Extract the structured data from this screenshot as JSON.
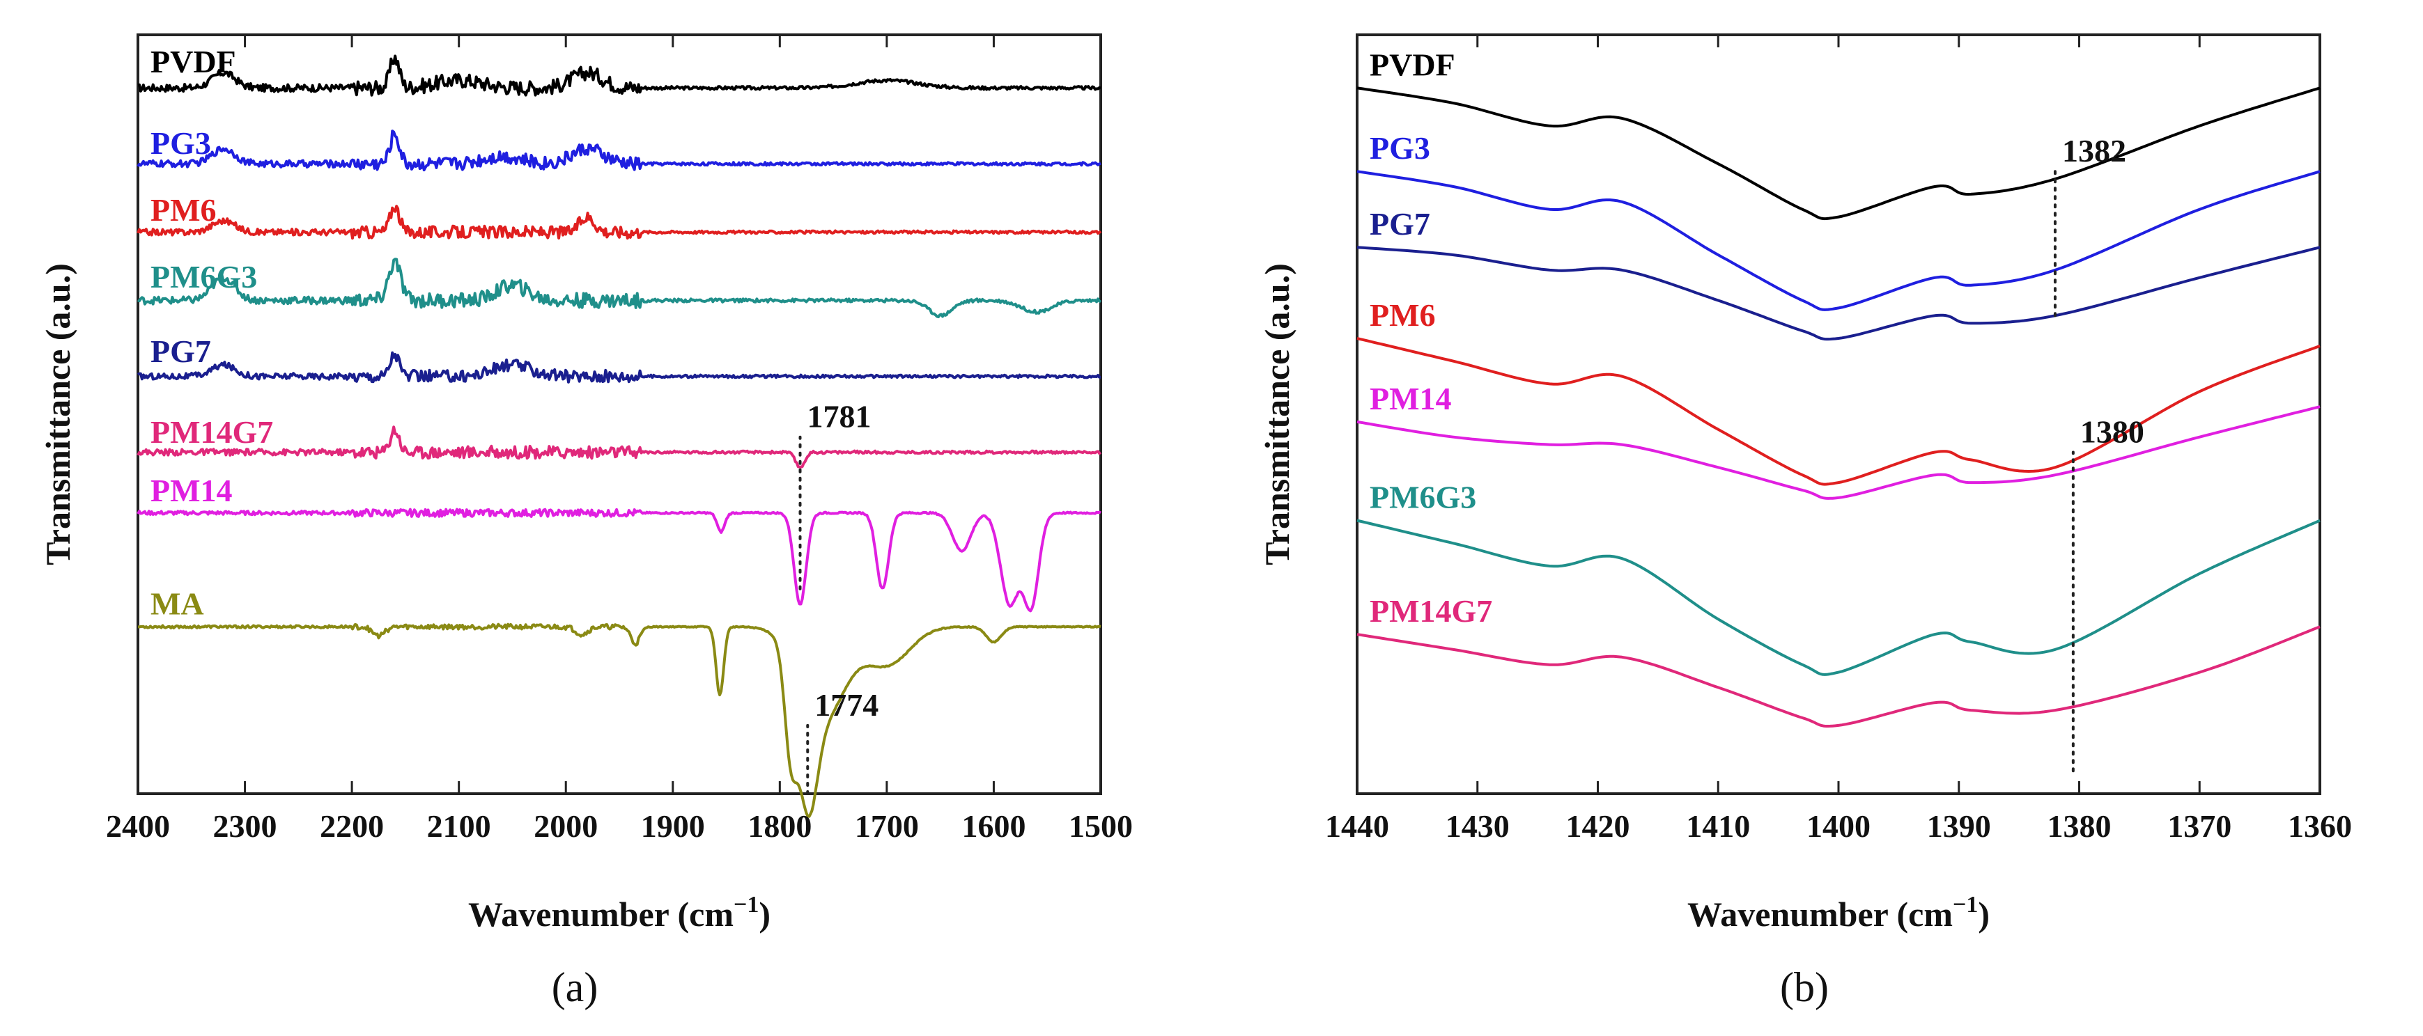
{
  "chart_data": [
    {
      "type": "line",
      "panel": "a",
      "caption": "(a)",
      "xlabel_main": "Wavenumber (cm",
      "xlabel_sup": "−1",
      "xlabel_end": ")",
      "ylabel": "Transmittance (a.u.)",
      "xlim": [
        2400,
        1500
      ],
      "x_reversed": true,
      "xticks": [
        2400,
        2300,
        2200,
        2100,
        2000,
        1900,
        1800,
        1700,
        1600,
        1500
      ],
      "legend": "inline labels at left of each trace",
      "series": [
        {
          "name": "PVDF",
          "color": "#000000",
          "offset": 0.93,
          "bumps": [
            [
              2320,
              0.02,
              15
            ],
            [
              2160,
              0.04,
              6
            ],
            [
              2100,
              0.01,
              30
            ],
            [
              1980,
              0.02,
              20
            ],
            [
              1700,
              0.01,
              40
            ]
          ],
          "noise": 0.012
        },
        {
          "name": "PG3",
          "color": "#1f1fe0",
          "offset": 0.83,
          "bumps": [
            [
              2320,
              0.02,
              15
            ],
            [
              2160,
              0.04,
              6
            ],
            [
              2060,
              0.01,
              25
            ],
            [
              1980,
              0.02,
              20
            ]
          ],
          "noise": 0.011
        },
        {
          "name": "PM6",
          "color": "#e01f1f",
          "offset": 0.74,
          "bumps": [
            [
              2320,
              0.015,
              15
            ],
            [
              2160,
              0.035,
              6
            ],
            [
              1980,
              0.02,
              10
            ]
          ],
          "noise": 0.01
        },
        {
          "name": "PM6G3",
          "color": "#1f8f8a",
          "offset": 0.65,
          "bumps": [
            [
              2320,
              0.03,
              15
            ],
            [
              2160,
              0.05,
              8
            ],
            [
              2050,
              0.02,
              20
            ],
            [
              1650,
              -0.02,
              15
            ],
            [
              1560,
              -0.015,
              20
            ]
          ],
          "noise": 0.012
        },
        {
          "name": "PG7",
          "color": "#1a1f8f",
          "offset": 0.55,
          "bumps": [
            [
              2320,
              0.015,
              15
            ],
            [
              2160,
              0.03,
              6
            ],
            [
              2050,
              0.015,
              25
            ]
          ],
          "noise": 0.01
        },
        {
          "name": "PM14G7",
          "color": "#e0287a",
          "offset": 0.45,
          "bumps": [
            [
              2160,
              0.03,
              6
            ],
            [
              1781,
              -0.02,
              6
            ]
          ],
          "noise": 0.01
        },
        {
          "name": "PM14",
          "color": "#e01fe0",
          "offset": 0.37,
          "bumps": [
            [
              1855,
              -0.025,
              5
            ],
            [
              1781,
              -0.12,
              8
            ],
            [
              1704,
              -0.1,
              8
            ],
            [
              1630,
              -0.05,
              12
            ],
            [
              1585,
              -0.12,
              12
            ],
            [
              1565,
              -0.12,
              10
            ]
          ],
          "noise": 0.006
        },
        {
          "name": "MA",
          "color": "#8a8a14",
          "offset": 0.22,
          "bumps": [
            [
              2175,
              -0.012,
              8
            ],
            [
              1985,
              -0.01,
              8
            ],
            [
              1935,
              -0.022,
              6
            ],
            [
              1856,
              -0.09,
              5
            ],
            [
              1790,
              -0.12,
              8
            ],
            [
              1774,
              -0.15,
              12
            ],
            [
              1760,
              -0.12,
              30
            ],
            [
              1700,
              -0.05,
              30
            ],
            [
              1600,
              -0.02,
              10
            ]
          ],
          "noise": 0.004
        }
      ],
      "annotations": [
        {
          "text": "1781",
          "x": 1781,
          "line_y": [
            0.27,
            0.47
          ]
        },
        {
          "text": "1774",
          "x": 1774,
          "line_y": [
            0.0,
            0.09
          ]
        }
      ]
    },
    {
      "type": "line",
      "panel": "b",
      "caption": "(b)",
      "xlabel_main": "Wavenumber (cm",
      "xlabel_sup": "−1",
      "xlabel_end": ")",
      "ylabel": "Transmittance (a.u.)",
      "xlim": [
        1440,
        1360
      ],
      "x_reversed": true,
      "xticks": [
        1440,
        1430,
        1420,
        1410,
        1400,
        1390,
        1380,
        1370,
        1360
      ],
      "legend": "inline labels at left of each trace",
      "series": [
        {
          "name": "PVDF",
          "color": "#000000",
          "y": [
            0.93,
            0.91,
            0.88,
            0.89,
            0.83,
            0.77,
            0.76,
            0.8,
            0.79,
            0.81,
            0.88,
            0.93
          ]
        },
        {
          "name": "PG3",
          "color": "#1f1fe0",
          "y": [
            0.82,
            0.8,
            0.77,
            0.78,
            0.71,
            0.65,
            0.64,
            0.68,
            0.67,
            0.69,
            0.77,
            0.82
          ]
        },
        {
          "name": "PG7",
          "color": "#1a1f8f",
          "y": [
            0.72,
            0.71,
            0.69,
            0.69,
            0.65,
            0.61,
            0.6,
            0.63,
            0.62,
            0.63,
            0.68,
            0.72
          ]
        },
        {
          "name": "PM6",
          "color": "#e01f1f",
          "y": [
            0.6,
            0.57,
            0.54,
            0.55,
            0.48,
            0.42,
            0.41,
            0.45,
            0.44,
            0.43,
            0.53,
            0.59
          ]
        },
        {
          "name": "PM14",
          "color": "#e01fe0",
          "y": [
            0.49,
            0.47,
            0.46,
            0.46,
            0.43,
            0.4,
            0.39,
            0.42,
            0.41,
            0.42,
            0.47,
            0.51
          ]
        },
        {
          "name": "PM6G3",
          "color": "#1f8f8a",
          "y": [
            0.36,
            0.33,
            0.3,
            0.31,
            0.23,
            0.17,
            0.16,
            0.21,
            0.2,
            0.19,
            0.29,
            0.36
          ]
        },
        {
          "name": "PM14G7",
          "color": "#e0287a",
          "y": [
            0.21,
            0.19,
            0.17,
            0.18,
            0.14,
            0.1,
            0.09,
            0.12,
            0.11,
            0.11,
            0.16,
            0.22
          ]
        }
      ],
      "x_points": [
        1440,
        1432,
        1424,
        1418,
        1410,
        1403,
        1400,
        1392,
        1389,
        1382,
        1370,
        1360
      ],
      "annotations": [
        {
          "text": "1382",
          "x": 1382,
          "line_y": [
            0.63,
            0.82
          ]
        },
        {
          "text": "1380",
          "x": 1380.5,
          "line_y": [
            0.03,
            0.45
          ]
        }
      ]
    }
  ]
}
